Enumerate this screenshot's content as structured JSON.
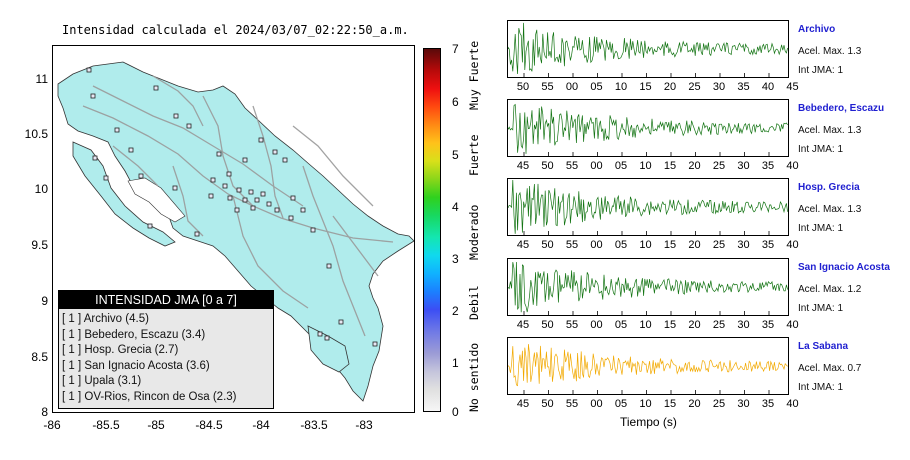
{
  "map": {
    "title": "Intensidad calculada el 2024/03/07_02:22:50_a.m.",
    "y_ticks": [
      "11",
      "10.5",
      "10",
      "9.5",
      "9",
      "8.5",
      "8"
    ],
    "x_ticks": [
      "-86",
      "-85.5",
      "-85",
      "-84.5",
      "-84",
      "-83.5",
      "-83"
    ]
  },
  "legend": {
    "title": "INTENSIDAD JMA [0 a 7]",
    "items": [
      "[ 1 ]  Archivo (4.5)",
      "[ 1 ]  Bebedero, Escazu (3.4)",
      "[ 1 ]  Hosp. Grecia (2.7)",
      "[ 1 ]  San Ignacio Acosta (3.6)",
      "[ 1 ]  Upala (3.1)",
      "[ 1 ]  OV-Rios, Rincon de Osa (2.3)"
    ]
  },
  "colorbar": {
    "ticks": [
      "7",
      "6",
      "5",
      "4",
      "3",
      "2",
      "1",
      "0"
    ],
    "categories": [
      "Muy Fuerte",
      "Fuerte",
      "Moderado",
      "Debil",
      "No sentido"
    ]
  },
  "panels": [
    {
      "name": "Archivo",
      "acel": "Acel. Max. 1.3",
      "int": "Int JMA: 1",
      "color": "#137413",
      "ticks": [
        "50",
        "55",
        "00",
        "05",
        "10",
        "15",
        "20",
        "25",
        "30",
        "35",
        "40",
        "45"
      ]
    },
    {
      "name": "Bebedero, Escazu",
      "acel": "Acel. Max. 1.3",
      "int": "Int JMA: 1",
      "color": "#137413",
      "ticks": [
        "45",
        "50",
        "55",
        "00",
        "05",
        "10",
        "15",
        "20",
        "25",
        "30",
        "35",
        "40"
      ]
    },
    {
      "name": "Hosp. Grecia",
      "acel": "Acel. Max. 1.3",
      "int": "Int JMA: 1",
      "color": "#137413",
      "ticks": [
        "45",
        "50",
        "55",
        "00",
        "05",
        "10",
        "15",
        "20",
        "25",
        "30",
        "35",
        "40"
      ]
    },
    {
      "name": "San Ignacio Acosta",
      "acel": "Acel. Max. 1.2",
      "int": "Int JMA: 1",
      "color": "#137413",
      "ticks": [
        "45",
        "50",
        "55",
        "00",
        "05",
        "10",
        "15",
        "20",
        "25",
        "30",
        "35",
        "40"
      ]
    },
    {
      "name": "La Sabana",
      "acel": "Acel. Max. 0.7",
      "int": "Int JMA: 1",
      "color": "#f2a900",
      "ticks": [
        "45",
        "50",
        "55",
        "00",
        "05",
        "10",
        "15",
        "20",
        "25",
        "30",
        "35",
        "40"
      ]
    }
  ],
  "xlabel": "Tiempo (s)"
}
